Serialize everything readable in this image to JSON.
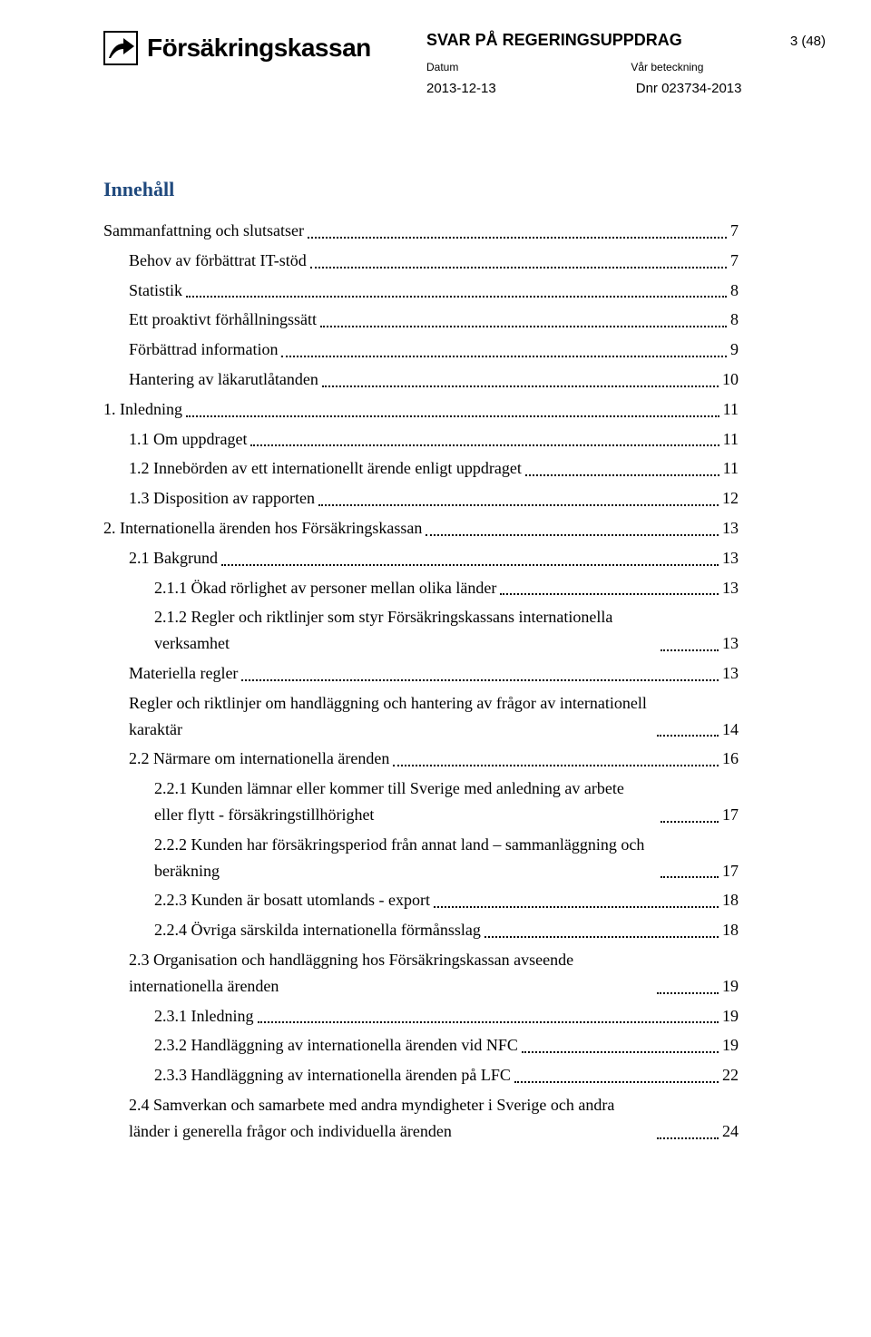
{
  "logo_text": "Försäkringskassan",
  "header": {
    "doc_title": "SVAR PÅ REGERINGSUPPDRAG",
    "page_indicator": "3 (48)",
    "label_date": "Datum",
    "label_ref": "Vår beteckning",
    "date": "2013-12-13",
    "ref": "Dnr 023734-2013"
  },
  "toc_heading": "Innehåll",
  "toc": [
    {
      "indent": 0,
      "label": "Sammanfattning och slutsatser",
      "page": "7"
    },
    {
      "indent": 1,
      "label": "Behov av förbättrat IT-stöd",
      "page": "7"
    },
    {
      "indent": 1,
      "label": "Statistik",
      "page": "8"
    },
    {
      "indent": 1,
      "label": "Ett proaktivt förhållningssätt",
      "page": "8"
    },
    {
      "indent": 1,
      "label": "Förbättrad information",
      "page": "9"
    },
    {
      "indent": 1,
      "label": "Hantering av läkarutlåtanden",
      "page": "10"
    },
    {
      "indent": 0,
      "label": "1. Inledning",
      "page": "11"
    },
    {
      "indent": 1,
      "label": "1.1 Om uppdraget",
      "page": "11"
    },
    {
      "indent": 1,
      "label": "1.2 Innebörden av ett internationellt ärende enligt uppdraget",
      "page": "11"
    },
    {
      "indent": 1,
      "label": "1.3 Disposition av rapporten",
      "page": "12"
    },
    {
      "indent": 0,
      "label": "2. Internationella ärenden hos Försäkringskassan",
      "page": "13"
    },
    {
      "indent": 1,
      "label": "2.1 Bakgrund",
      "page": "13"
    },
    {
      "indent": 2,
      "label": "2.1.1 Ökad rörlighet av personer mellan olika länder",
      "page": "13"
    },
    {
      "indent": 2,
      "label": "2.1.2 Regler och riktlinjer som styr Försäkringskassans internationella verksamhet",
      "page": "13"
    },
    {
      "indent": 1,
      "label": "Materiella regler",
      "page": "13"
    },
    {
      "indent": 1,
      "label": "Regler och riktlinjer om handläggning och hantering av frågor av internationell karaktär",
      "page": "14"
    },
    {
      "indent": 1,
      "label": "2.2 Närmare om internationella ärenden",
      "page": "16"
    },
    {
      "indent": 2,
      "label": "2.2.1 Kunden lämnar eller kommer till Sverige med anledning av arbete eller flytt - försäkringstillhörighet",
      "page": "17"
    },
    {
      "indent": 2,
      "label": "2.2.2 Kunden har försäkringsperiod från annat land – sammanläggning och beräkning",
      "page": "17"
    },
    {
      "indent": 2,
      "label": "2.2.3 Kunden är bosatt utomlands - export",
      "page": "18"
    },
    {
      "indent": 2,
      "label": "2.2.4 Övriga särskilda internationella förmånsslag",
      "page": "18"
    },
    {
      "indent": 1,
      "label": "2.3 Organisation och handläggning hos Försäkringskassan avseende internationella ärenden",
      "page": "19"
    },
    {
      "indent": 2,
      "label": "2.3.1 Inledning",
      "page": "19"
    },
    {
      "indent": 2,
      "label": "2.3.2 Handläggning av internationella ärenden vid NFC",
      "page": "19"
    },
    {
      "indent": 2,
      "label": "2.3.3 Handläggning av internationella ärenden på LFC",
      "page": "22"
    },
    {
      "indent": 1,
      "label": "2.4 Samverkan och samarbete med andra myndigheter i Sverige och andra länder i generella frågor och individuella ärenden",
      "page": "24"
    }
  ],
  "colors": {
    "heading": "#1f497d",
    "text": "#000000",
    "background": "#ffffff"
  }
}
